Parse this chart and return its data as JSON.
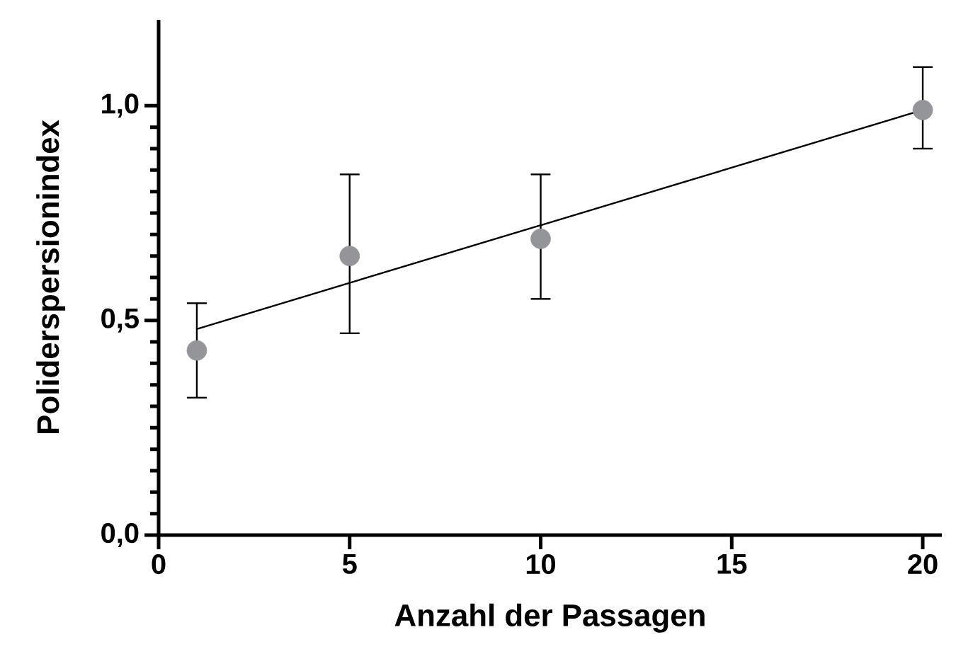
{
  "chart_data": {
    "type": "scatter",
    "xlabel": "Anzahl der Passagen",
    "ylabel": "Poliderspersionindex",
    "marker": "circle",
    "xlim": [
      0,
      20.5
    ],
    "ylim": [
      0,
      1.2
    ],
    "xticks": [
      0,
      5,
      10,
      15,
      20
    ],
    "yticks": [
      {
        "value": 0,
        "label": "0,0"
      },
      {
        "value": 0.5,
        "label": "0,5"
      },
      {
        "value": 1,
        "label": "1,0"
      }
    ],
    "series": [
      {
        "color": "#939598",
        "x": [
          1,
          5,
          10,
          20
        ],
        "values": [
          0.43,
          0.65,
          0.69,
          0.99
        ],
        "errors": [
          [
            0.32,
            0.54
          ],
          [
            0.47,
            0.84
          ],
          [
            0.55,
            0.84
          ],
          [
            0.9,
            1.09
          ]
        ]
      },
      {
        "type": "line",
        "color": "#000000",
        "marker": "none",
        "x": [
          1,
          20
        ],
        "values": [
          0.48,
          0.99
        ]
      }
    ]
  }
}
